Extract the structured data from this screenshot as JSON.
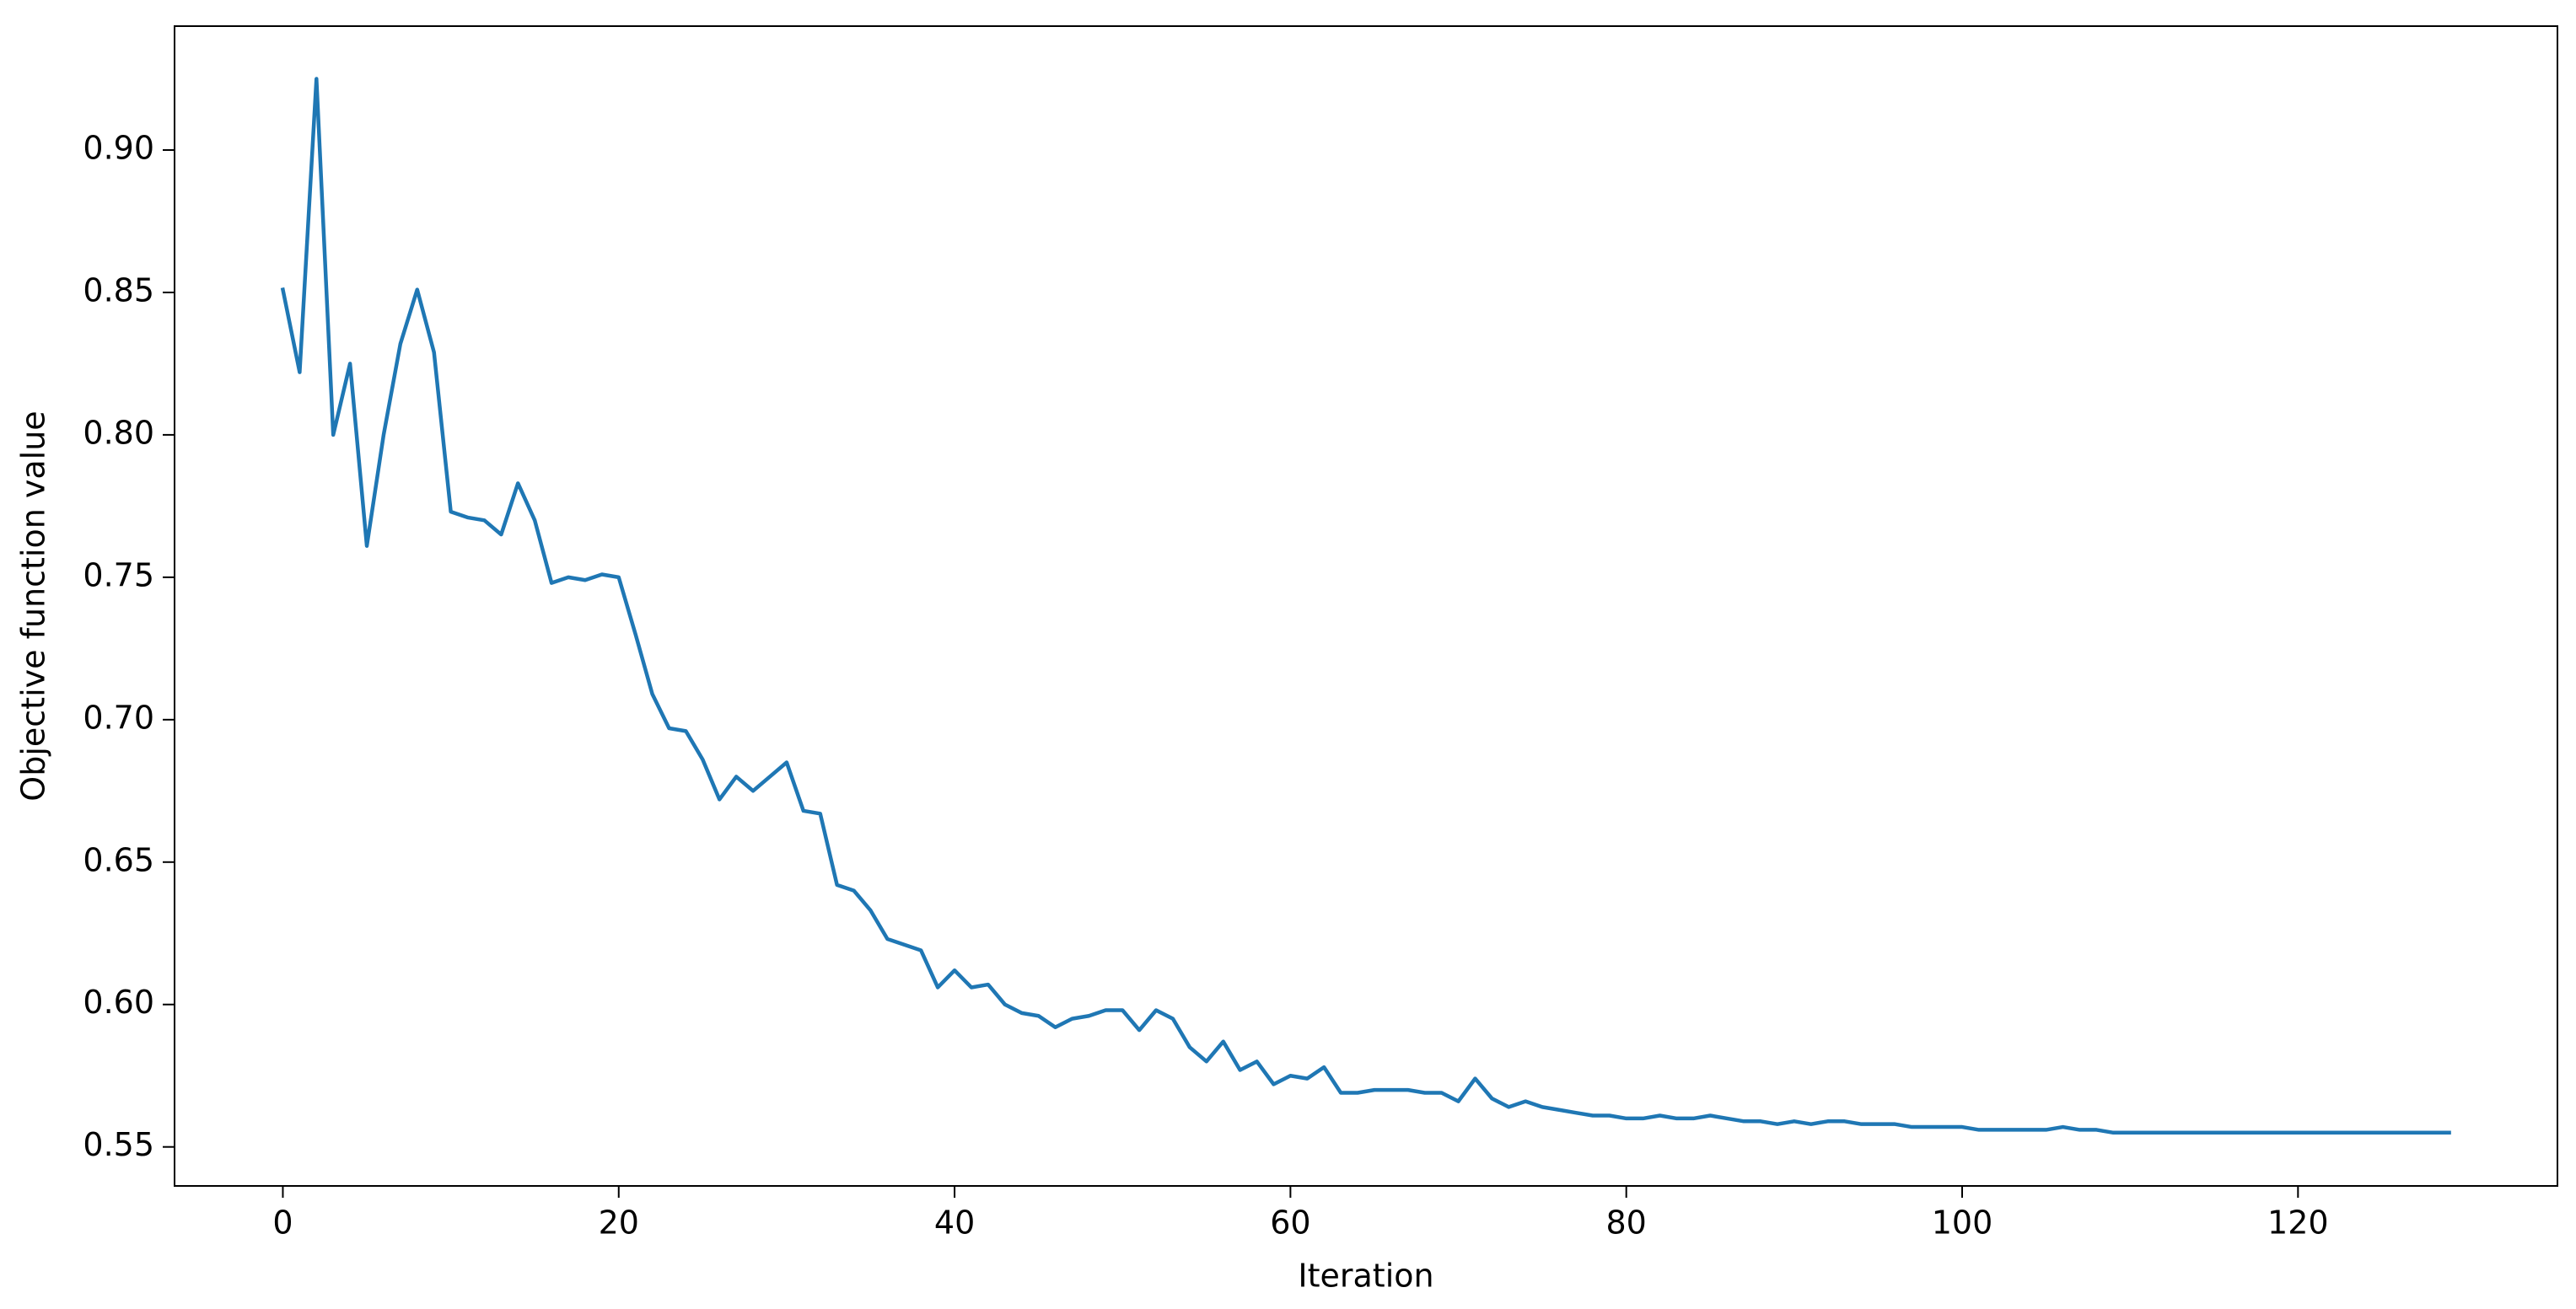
{
  "chart_data": {
    "type": "line",
    "xlabel": "Iteration",
    "ylabel": "Objective function value",
    "x": [
      0,
      1,
      2,
      3,
      4,
      5,
      6,
      7,
      8,
      9,
      10,
      11,
      12,
      13,
      14,
      15,
      16,
      17,
      18,
      19,
      20,
      21,
      22,
      23,
      24,
      25,
      26,
      27,
      28,
      29,
      30,
      31,
      32,
      33,
      34,
      35,
      36,
      37,
      38,
      39,
      40,
      41,
      42,
      43,
      44,
      45,
      46,
      47,
      48,
      49,
      50,
      51,
      52,
      53,
      54,
      55,
      56,
      57,
      58,
      59,
      60,
      61,
      62,
      63,
      64,
      65,
      66,
      67,
      68,
      69,
      70,
      71,
      72,
      73,
      74,
      75,
      76,
      77,
      78,
      79,
      80,
      81,
      82,
      83,
      84,
      85,
      86,
      87,
      88,
      89,
      90,
      91,
      92,
      93,
      94,
      95,
      96,
      97,
      98,
      99,
      100,
      101,
      102,
      103,
      104,
      105,
      106,
      107,
      108,
      109,
      110,
      111,
      112,
      113,
      114,
      115,
      116,
      117,
      118,
      119,
      120,
      121,
      122,
      123,
      124,
      125,
      126,
      127,
      128,
      129
    ],
    "series": [
      {
        "color": "#1f77b4",
        "values": [
          0.851,
          0.822,
          0.925,
          0.8,
          0.825,
          0.761,
          0.8,
          0.832,
          0.851,
          0.829,
          0.773,
          0.771,
          0.77,
          0.765,
          0.783,
          0.77,
          0.748,
          0.75,
          0.749,
          0.751,
          0.75,
          0.73,
          0.709,
          0.697,
          0.696,
          0.686,
          0.672,
          0.68,
          0.675,
          0.68,
          0.685,
          0.668,
          0.667,
          0.642,
          0.64,
          0.633,
          0.623,
          0.621,
          0.619,
          0.606,
          0.612,
          0.606,
          0.607,
          0.6,
          0.597,
          0.596,
          0.592,
          0.595,
          0.596,
          0.598,
          0.598,
          0.591,
          0.598,
          0.595,
          0.585,
          0.58,
          0.587,
          0.577,
          0.58,
          0.572,
          0.575,
          0.574,
          0.578,
          0.569,
          0.569,
          0.57,
          0.57,
          0.57,
          0.569,
          0.569,
          0.566,
          0.574,
          0.567,
          0.564,
          0.566,
          0.564,
          0.563,
          0.562,
          0.561,
          0.561,
          0.56,
          0.56,
          0.561,
          0.56,
          0.56,
          0.561,
          0.56,
          0.559,
          0.559,
          0.558,
          0.559,
          0.558,
          0.559,
          0.559,
          0.558,
          0.558,
          0.558,
          0.557,
          0.557,
          0.557,
          0.557,
          0.556,
          0.556,
          0.556,
          0.556,
          0.556,
          0.557,
          0.556,
          0.556,
          0.555,
          0.555,
          0.555,
          0.555,
          0.555,
          0.555,
          0.555,
          0.555,
          0.555,
          0.555,
          0.555,
          0.555,
          0.555,
          0.555,
          0.555,
          0.555,
          0.555,
          0.555,
          0.555,
          0.555,
          0.555
        ]
      }
    ],
    "xlim": [
      -6.45,
      135.45
    ],
    "xticks": [
      0,
      20,
      40,
      60,
      80,
      100,
      120
    ],
    "ylim": [
      0.5363,
      0.9435
    ],
    "yticks": [
      0.55,
      {
        "value": 0.6,
        "label": "0.60"
      },
      0.65,
      {
        "value": 0.7,
        "label": "0.70"
      },
      0.75,
      {
        "value": 0.8,
        "label": "0.80"
      },
      0.85,
      {
        "value": 0.9,
        "label": "0.90"
      }
    ],
    "grid": false
  }
}
